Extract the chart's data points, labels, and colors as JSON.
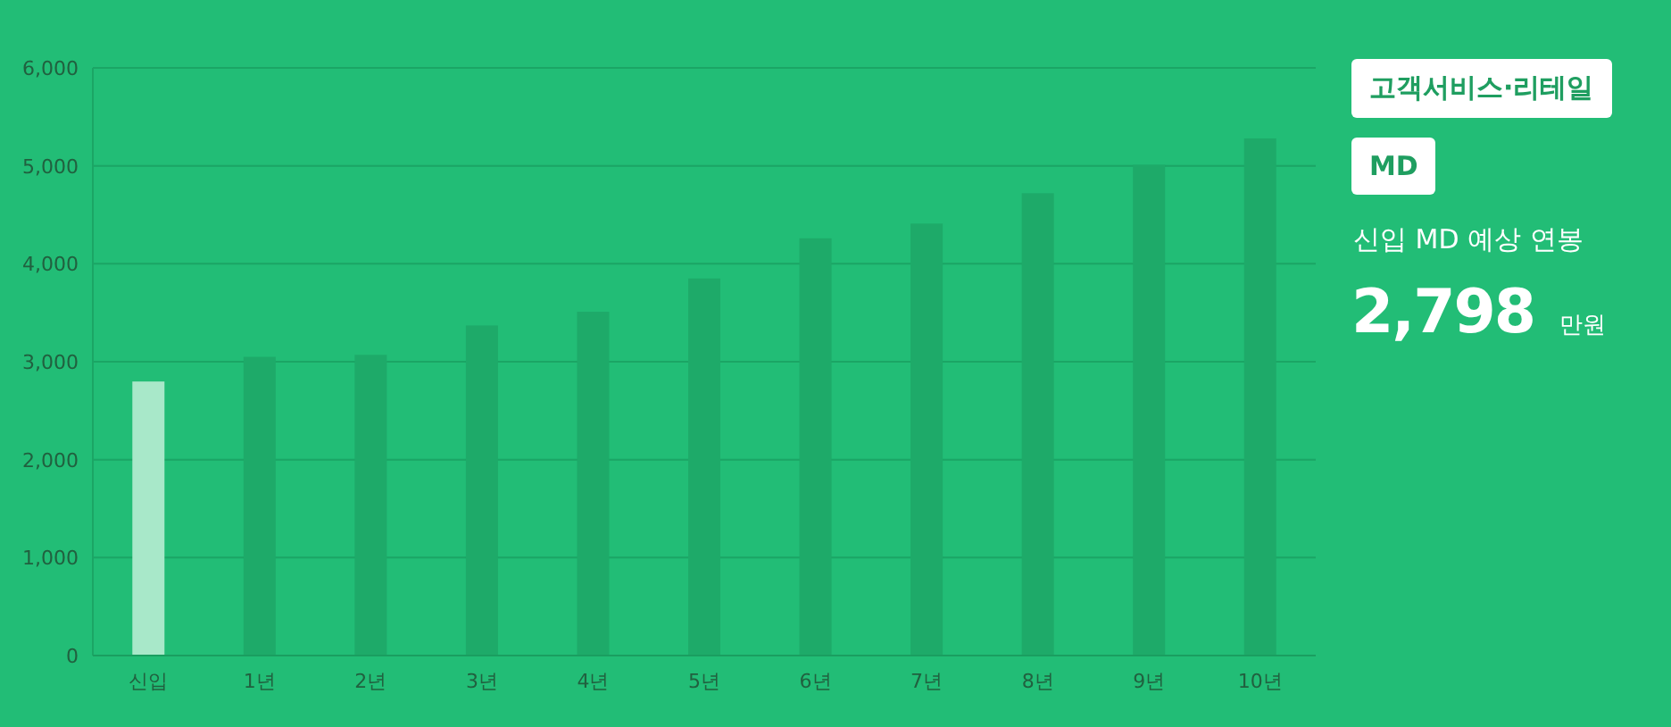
{
  "chart_data": [
    {
      "type": "bar",
      "categories": [
        "신입",
        "1년",
        "2년",
        "3년",
        "4년",
        "5년",
        "6년",
        "7년",
        "8년",
        "9년",
        "10년"
      ],
      "values": [
        2798,
        3050,
        3070,
        3370,
        3510,
        3850,
        4260,
        4410,
        4720,
        5010,
        5280
      ],
      "colors": [
        "#a8e8c9",
        "#1eaa69",
        "#1eaa69",
        "#1eaa69",
        "#1eaa69",
        "#1eaa69",
        "#1eaa69",
        "#1eaa69",
        "#1eaa69",
        "#1eaa69",
        "#1eaa69"
      ],
      "ylim": [
        0,
        6000
      ],
      "yticks": [
        {
          "value": 0,
          "label": "0"
        },
        {
          "value": 1000,
          "label": "1,000"
        },
        {
          "value": 2000,
          "label": "2,000"
        },
        {
          "value": 3000,
          "label": "3,000"
        },
        {
          "value": 4000,
          "label": "4,000"
        },
        {
          "value": 5000,
          "label": "5,000"
        },
        {
          "value": 6000,
          "label": "6,000"
        }
      ],
      "grid": "y"
    },
    {
      "type": "other",
      "title": "신입 MD 예상 연봉",
      "annotations": [
        "고객서비스·리테일",
        "MD",
        "2,798",
        "만원"
      ]
    }
  ]
}
